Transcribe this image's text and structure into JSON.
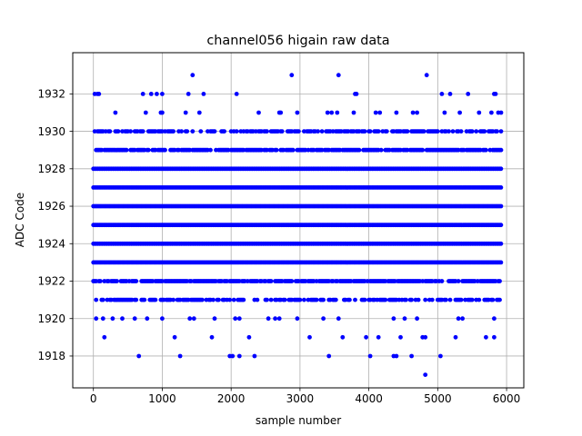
{
  "chart_data": {
    "type": "scatter",
    "title": "channel056 higain raw data",
    "xlabel": "sample number",
    "ylabel": "ADC Code",
    "xlim": [
      -300,
      6250
    ],
    "ylim": [
      1916.3,
      1934.2
    ],
    "xticks": [
      0,
      1000,
      2000,
      3000,
      4000,
      5000,
      6000
    ],
    "yticks": [
      1918,
      1920,
      1922,
      1924,
      1926,
      1928,
      1930,
      1932
    ],
    "grid": true,
    "marker_color": "#0000ff",
    "x_range": [
      0,
      5920
    ],
    "dense_levels": [
      1923,
      1924,
      1925,
      1926,
      1927,
      1928
    ],
    "frequent_levels": [
      1922,
      1929
    ],
    "common_levels": [
      1921,
      1930
    ],
    "sparse_points": [
      {
        "x": 1440,
        "y": 1933
      },
      {
        "x": 2880,
        "y": 1933
      },
      {
        "x": 3560,
        "y": 1933
      },
      {
        "x": 4840,
        "y": 1933
      },
      {
        "x": 20,
        "y": 1932
      },
      {
        "x": 60,
        "y": 1932
      },
      {
        "x": 80,
        "y": 1932
      },
      {
        "x": 720,
        "y": 1932
      },
      {
        "x": 840,
        "y": 1932
      },
      {
        "x": 920,
        "y": 1932
      },
      {
        "x": 1000,
        "y": 1932
      },
      {
        "x": 1380,
        "y": 1932
      },
      {
        "x": 1600,
        "y": 1932
      },
      {
        "x": 2080,
        "y": 1932
      },
      {
        "x": 3800,
        "y": 1932
      },
      {
        "x": 3820,
        "y": 1932
      },
      {
        "x": 5060,
        "y": 1932
      },
      {
        "x": 5180,
        "y": 1932
      },
      {
        "x": 5440,
        "y": 1932
      },
      {
        "x": 5820,
        "y": 1932
      },
      {
        "x": 5840,
        "y": 1932
      },
      {
        "x": 320,
        "y": 1931
      },
      {
        "x": 760,
        "y": 1931
      },
      {
        "x": 980,
        "y": 1931
      },
      {
        "x": 1000,
        "y": 1931
      },
      {
        "x": 1340,
        "y": 1931
      },
      {
        "x": 1540,
        "y": 1931
      },
      {
        "x": 2400,
        "y": 1931
      },
      {
        "x": 2700,
        "y": 1931
      },
      {
        "x": 2720,
        "y": 1931
      },
      {
        "x": 2960,
        "y": 1931
      },
      {
        "x": 3400,
        "y": 1931
      },
      {
        "x": 3460,
        "y": 1931
      },
      {
        "x": 3540,
        "y": 1931
      },
      {
        "x": 3780,
        "y": 1931
      },
      {
        "x": 4100,
        "y": 1931
      },
      {
        "x": 4160,
        "y": 1931
      },
      {
        "x": 4400,
        "y": 1931
      },
      {
        "x": 4640,
        "y": 1931
      },
      {
        "x": 4700,
        "y": 1931
      },
      {
        "x": 5100,
        "y": 1931
      },
      {
        "x": 5320,
        "y": 1931
      },
      {
        "x": 5600,
        "y": 1931
      },
      {
        "x": 5780,
        "y": 1931
      },
      {
        "x": 5880,
        "y": 1931
      },
      {
        "x": 5920,
        "y": 1931
      },
      {
        "x": 160,
        "y": 1919
      },
      {
        "x": 1180,
        "y": 1919
      },
      {
        "x": 1720,
        "y": 1919
      },
      {
        "x": 2260,
        "y": 1919
      },
      {
        "x": 3140,
        "y": 1919
      },
      {
        "x": 3620,
        "y": 1919
      },
      {
        "x": 3960,
        "y": 1919
      },
      {
        "x": 4140,
        "y": 1919
      },
      {
        "x": 4460,
        "y": 1919
      },
      {
        "x": 4780,
        "y": 1919
      },
      {
        "x": 4820,
        "y": 1919
      },
      {
        "x": 5260,
        "y": 1919
      },
      {
        "x": 5700,
        "y": 1919
      },
      {
        "x": 5820,
        "y": 1919
      },
      {
        "x": 40,
        "y": 1920
      },
      {
        "x": 140,
        "y": 1920
      },
      {
        "x": 280,
        "y": 1920
      },
      {
        "x": 420,
        "y": 1920
      },
      {
        "x": 600,
        "y": 1920
      },
      {
        "x": 780,
        "y": 1920
      },
      {
        "x": 1000,
        "y": 1920
      },
      {
        "x": 1400,
        "y": 1920
      },
      {
        "x": 1460,
        "y": 1920
      },
      {
        "x": 1760,
        "y": 1920
      },
      {
        "x": 2060,
        "y": 1920
      },
      {
        "x": 2120,
        "y": 1920
      },
      {
        "x": 2540,
        "y": 1920
      },
      {
        "x": 2640,
        "y": 1920
      },
      {
        "x": 2700,
        "y": 1920
      },
      {
        "x": 2960,
        "y": 1920
      },
      {
        "x": 3340,
        "y": 1920
      },
      {
        "x": 3560,
        "y": 1920
      },
      {
        "x": 4360,
        "y": 1920
      },
      {
        "x": 4520,
        "y": 1920
      },
      {
        "x": 4700,
        "y": 1920
      },
      {
        "x": 5300,
        "y": 1920
      },
      {
        "x": 5360,
        "y": 1920
      },
      {
        "x": 5820,
        "y": 1920
      },
      {
        "x": 660,
        "y": 1918
      },
      {
        "x": 1260,
        "y": 1918
      },
      {
        "x": 1980,
        "y": 1918
      },
      {
        "x": 2020,
        "y": 1918
      },
      {
        "x": 2120,
        "y": 1918
      },
      {
        "x": 2340,
        "y": 1918
      },
      {
        "x": 3420,
        "y": 1918
      },
      {
        "x": 4020,
        "y": 1918
      },
      {
        "x": 4360,
        "y": 1918
      },
      {
        "x": 4400,
        "y": 1918
      },
      {
        "x": 4620,
        "y": 1918
      },
      {
        "x": 5040,
        "y": 1918
      },
      {
        "x": 4820,
        "y": 1917
      }
    ]
  }
}
